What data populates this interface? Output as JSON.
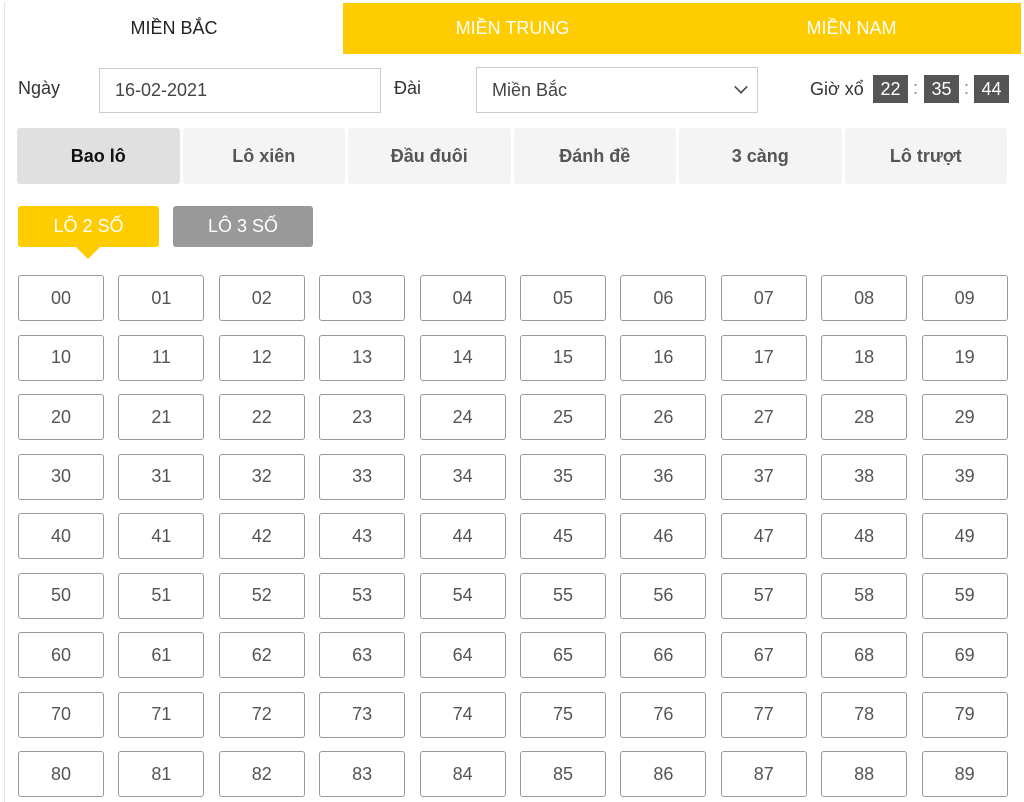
{
  "region_tabs": [
    "MIỀN BẮC",
    "MIỀN TRUNG",
    "MIỀN NAM"
  ],
  "active_region": 0,
  "form": {
    "date_label": "Ngày",
    "date_value": "16-02-2021",
    "station_label": "Đài",
    "station_value": "Miền Bắc",
    "draw_time_label": "Giờ xổ",
    "hours": "22",
    "minutes": "35",
    "seconds": "44",
    "colon": ":"
  },
  "modes": [
    "Bao lô",
    "Lô xiên",
    "Đầu đuôi",
    "Đánh đề",
    "3 càng",
    "Lô trượt"
  ],
  "active_mode": 0,
  "sub_tabs": {
    "lo2": "LÔ 2 SỐ",
    "lo3": "LÔ 3 SỐ"
  },
  "numbers": [
    "00",
    "01",
    "02",
    "03",
    "04",
    "05",
    "06",
    "07",
    "08",
    "09",
    "10",
    "11",
    "12",
    "13",
    "14",
    "15",
    "16",
    "17",
    "18",
    "19",
    "20",
    "21",
    "22",
    "23",
    "24",
    "25",
    "26",
    "27",
    "28",
    "29",
    "30",
    "31",
    "32",
    "33",
    "34",
    "35",
    "36",
    "37",
    "38",
    "39",
    "40",
    "41",
    "42",
    "43",
    "44",
    "45",
    "46",
    "47",
    "48",
    "49",
    "50",
    "51",
    "52",
    "53",
    "54",
    "55",
    "56",
    "57",
    "58",
    "59",
    "60",
    "61",
    "62",
    "63",
    "64",
    "65",
    "66",
    "67",
    "68",
    "69",
    "70",
    "71",
    "72",
    "73",
    "74",
    "75",
    "76",
    "77",
    "78",
    "79",
    "80",
    "81",
    "82",
    "83",
    "84",
    "85",
    "86",
    "87",
    "88",
    "89"
  ],
  "colors": {
    "accent": "#ffcc00",
    "inactive": "#999999",
    "time_box": "#555555"
  }
}
